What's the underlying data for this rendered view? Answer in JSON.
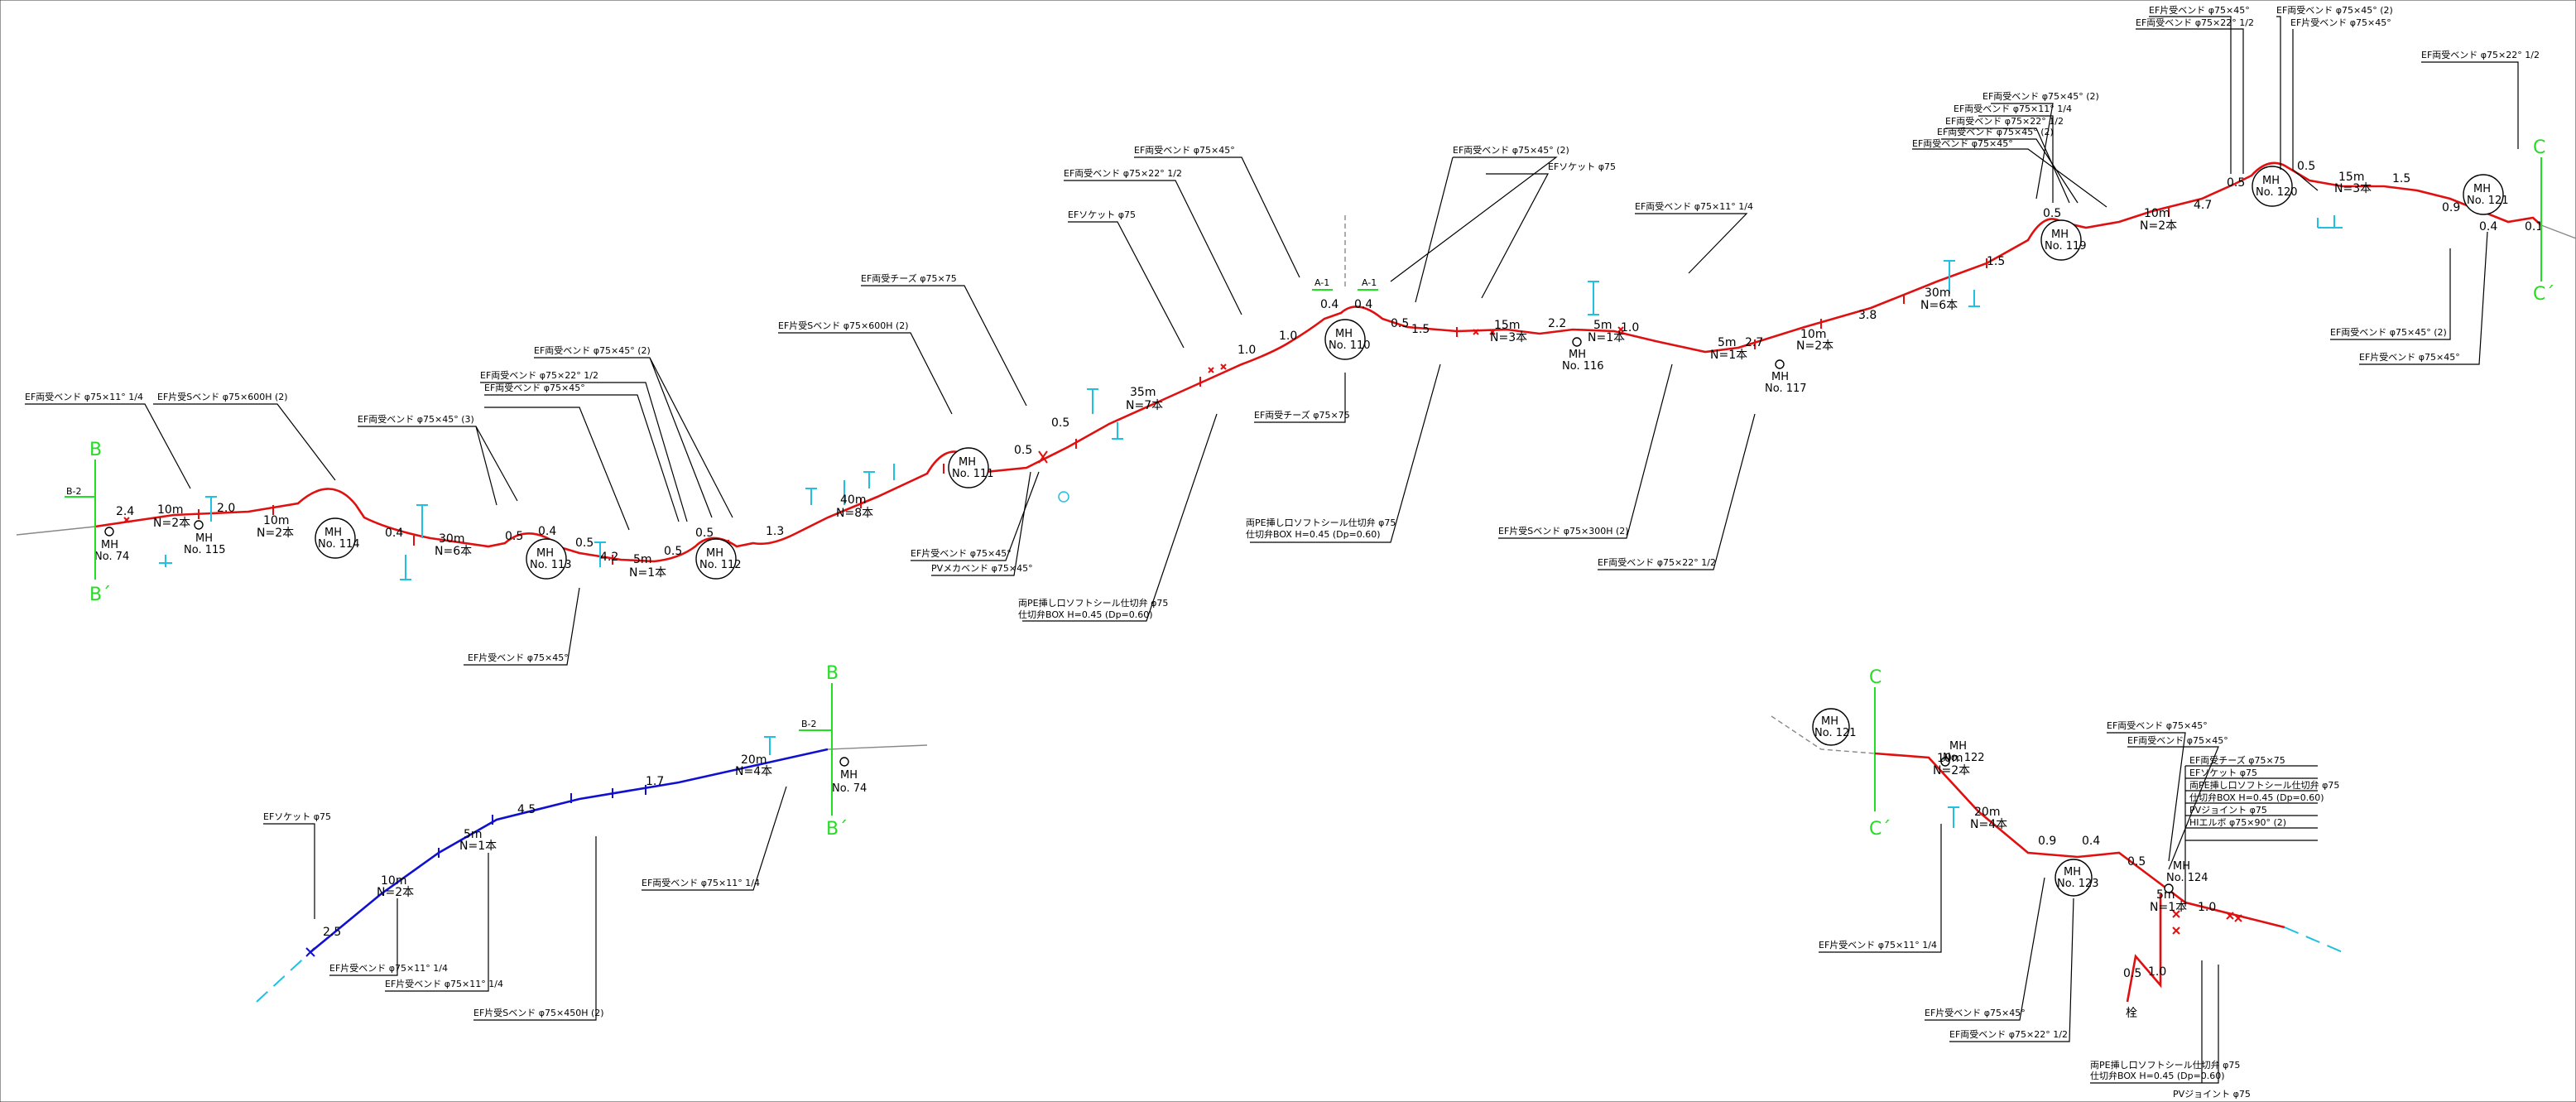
{
  "main_pipeline": {
    "manholes": [
      {
        "id": "mh74",
        "label": "MH\nNo. 74"
      },
      {
        "id": "mh115",
        "label": "MH\nNo. 115"
      },
      {
        "id": "mh114",
        "label": "MH\nNo. 114"
      },
      {
        "id": "mh113",
        "label": "MH\nNo. 113"
      },
      {
        "id": "mh112",
        "label": "MH\nNo. 112"
      },
      {
        "id": "mh111",
        "label": "MH\nNo. 111"
      },
      {
        "id": "mh110",
        "label": "MH\nNo. 110"
      },
      {
        "id": "mh116",
        "label": "MH\nNo. 116"
      },
      {
        "id": "mh117",
        "label": "MH\nNo. 117"
      },
      {
        "id": "mh119",
        "label": "MH\nNo. 119"
      },
      {
        "id": "mh120",
        "label": "MH\nNo. 120"
      },
      {
        "id": "mh121",
        "label": "MH\nNo. 121"
      }
    ],
    "segment_labels": [
      {
        "len": "10m",
        "n": "N=2本"
      },
      {
        "len": "10m",
        "n": "N=2本"
      },
      {
        "len": "30m",
        "n": "N=6本"
      },
      {
        "len": "5m",
        "n": "N=1本"
      },
      {
        "len": "40m",
        "n": "N=8本"
      },
      {
        "len": "35m",
        "n": "N=7本"
      },
      {
        "len": "15m",
        "n": "N=3本"
      },
      {
        "len": "5m",
        "n": "N=1本"
      },
      {
        "len": "5m",
        "n": "N=1本"
      },
      {
        "len": "10m",
        "n": "N=2本"
      },
      {
        "len": "30m",
        "n": "N=6本"
      },
      {
        "len": "10m",
        "n": "N=2本"
      },
      {
        "len": "15m",
        "n": "N=3本"
      }
    ],
    "distances": [
      "2.4",
      "2.0",
      "0.4",
      "0.5",
      "0.4",
      "0.5",
      "4.2",
      "0.5",
      "0.5",
      "1.3",
      "0.5",
      "0.5",
      "1.0",
      "1.0",
      "0.4",
      "0.4",
      "0.5",
      "1.5",
      "2.2",
      "1.0",
      "2.7",
      "3.8",
      "1.5",
      "0.5",
      "4.7",
      "0.5",
      "0.5",
      "1.5",
      "0.9",
      "0.4",
      "0.1"
    ],
    "sections": {
      "b": "B",
      "b_prime": "B´",
      "b2": "B-2",
      "c": "C",
      "c_prime": "C´",
      "a1": "A-1"
    }
  },
  "annotations": {
    "a1": "EF両受ベンド φ75×11° 1/4",
    "a2": "EF片受Sベンド φ75×600H (2)",
    "a3": "EF両受ベンド φ75×45° (3)",
    "a4": "EF両受ベンド φ75×45° (2)",
    "a5": "EF両受ベンド φ75×22° 1/2",
    "a6": "EF両受ベンド φ75×45°",
    "a7": "EF片受ベンド φ75×45°",
    "a8": "EF片受Sベンド φ75×600H (2)",
    "a9": "EF両受チーズ φ75×75",
    "a10": "EF片受ベンド φ75×45°",
    "a11": "PVメカベンド φ75×45°",
    "a12": "両PE挿し口ソフトシール仕切弁 φ75",
    "a13": "仕切弁BOX H=0.45 (Dp=0.60)",
    "a14": "EFソケット φ75",
    "a15": "EF両受ベンド φ75×22° 1/2",
    "a16": "EF両受ベンド φ75×45°",
    "a17": "EF両受チーズ φ75×75",
    "a18": "EF両受ベンド φ75×45° (2)",
    "a19": "EFソケット φ75",
    "a20": "EF両受ベンド φ75×11° 1/4",
    "a21": "両PE挿し口ソフトシール仕切弁 φ75",
    "a22": "仕切弁BOX H=0.45 (Dp=0.60)",
    "a23": "EF片受Sベンド φ75×300H (2)",
    "a24": "EF両受ベンド φ75×22° 1/2",
    "a25": "EF両受ベンド φ75×45° (2)",
    "a26": "EF両受ベンド φ75×11° 1/4",
    "a27": "EF両受ベンド φ75×22° 1/2",
    "a28": "EF両受ベンド φ75×45° (2)",
    "a29": "EF両受ベンド φ75×45°",
    "a30": "EF片受ベンド φ75×45°",
    "a31": "EF両受ベンド φ75×22° 1/2",
    "a32": "EF両受ベンド φ75×45° (2)",
    "a33": "EF片受ベンド φ75×45°",
    "a34": "EF両受ベンド φ75×22° 1/2",
    "a35": "EF両受ベンド φ75×45° (2)",
    "a36": "EF片受ベンド φ75×45°"
  },
  "sub_b": {
    "mh": "MH\nNo. 74",
    "segs": [
      {
        "len": "10m",
        "n": "N=2本"
      },
      {
        "len": "5m",
        "n": "N=1本"
      },
      {
        "len": "20m",
        "n": "N=4本"
      }
    ],
    "dists": [
      "2.5",
      "4.5",
      "1.7"
    ],
    "notes": {
      "n1": "EFソケット φ75",
      "n2": "EF片受ベンド φ75×11° 1/4",
      "n3": "EF片受ベンド φ75×11° 1/4",
      "n4": "EF片受Sベンド φ75×450H (2)",
      "n5": "EF両受ベンド φ75×11° 1/4"
    }
  },
  "sub_c": {
    "mh": [
      "MH\nNo. 121",
      "MH\nNo. 122",
      "MH\nNo. 123",
      "MH\nNo. 124"
    ],
    "segs": [
      {
        "len": "10m",
        "n": "N=2本"
      },
      {
        "len": "20m",
        "n": "N=4本"
      },
      {
        "len": "5m",
        "n": "N=1本"
      }
    ],
    "dists": [
      "0.9",
      "0.4",
      "0.5",
      "1.0",
      "0.5",
      "1.0"
    ],
    "plug": "栓",
    "table": [
      "EF両受チーズ φ75×75",
      "EFソケット φ75",
      "両PE挿し口ソフトシール仕切弁 φ75",
      "仕切弁BOX H=0.45 (Dp=0.60)",
      "PVジョイント φ75",
      "HIエルボ φ75×90° (2)"
    ],
    "notes": {
      "n1": "EF両受ベンド φ75×45°",
      "n2": "EF両受ベンド φ75×45°",
      "n3": "EF片受ベンド φ75×11° 1/4",
      "n4": "EF片受ベンド φ75×45°",
      "n5": "EF両受ベンド φ75×22° 1/2",
      "n6": "両PE挿し口ソフトシール仕切弁 φ75",
      "n7": "仕切弁BOX H=0.45 (Dp=0.60)",
      "n8": "PVジョイント φ75"
    }
  },
  "colors": {
    "pipe": "#e01010",
    "branch": "#1010d0",
    "existing": "#888888",
    "valve": "#20c0e0",
    "section": "#22dd22"
  }
}
